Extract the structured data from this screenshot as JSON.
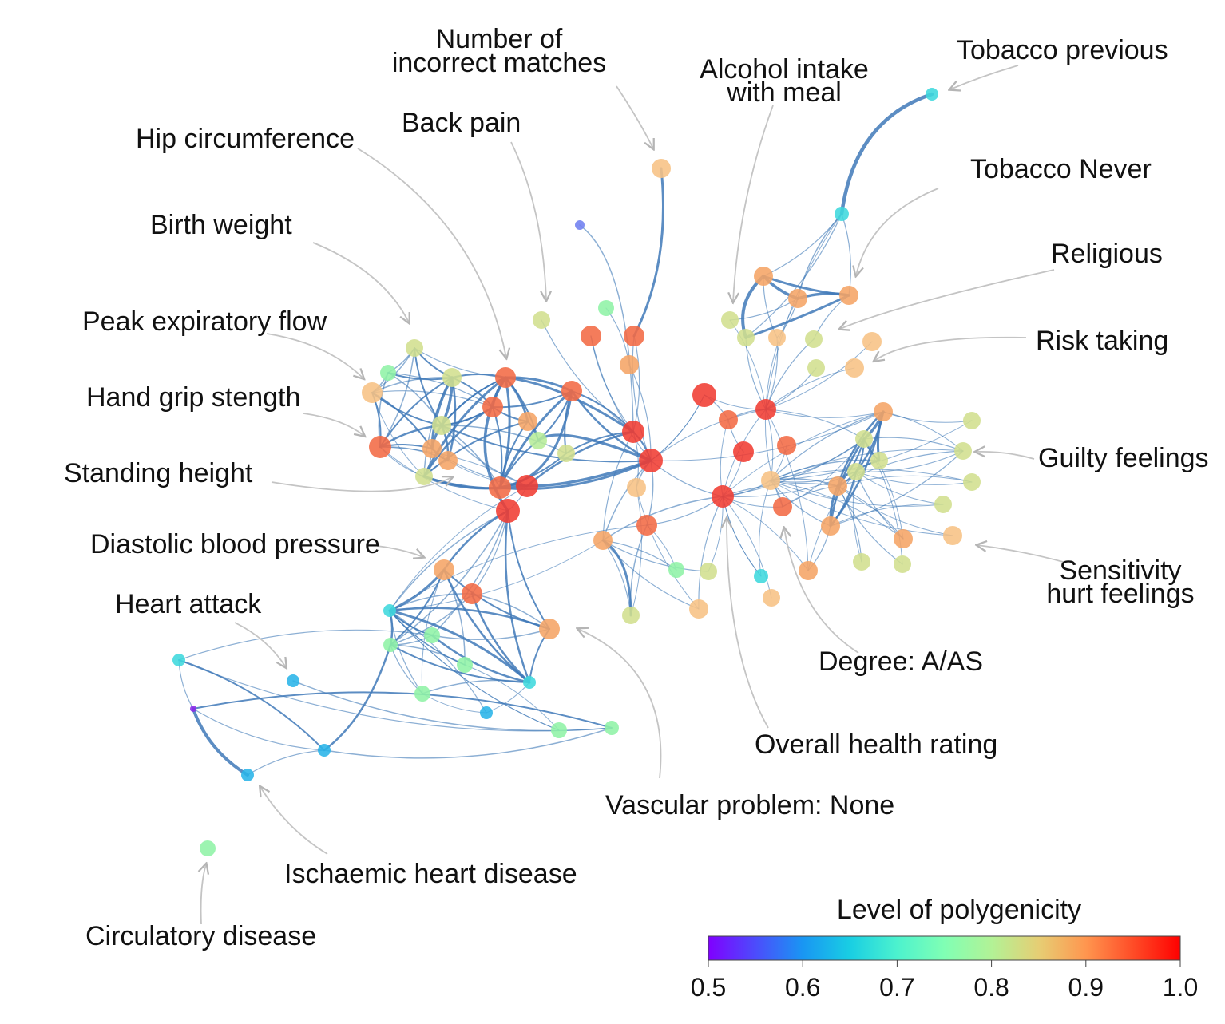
{
  "labels": {
    "tobacco_previous": "Tobacco previous",
    "number_incorrect_1": "Number of",
    "number_incorrect_2": "incorrect matches",
    "alcohol_1": "Alcohol intake",
    "alcohol_2": "with meal",
    "back_pain": "Back pain",
    "hip_circumference": "Hip circumference",
    "tobacco_never": "Tobacco Never",
    "birth_weight": "Birth weight",
    "religious": "Religious",
    "peak_expiratory_flow": "Peak expiratory flow",
    "risk_taking": "Risk taking",
    "hand_grip": "Hand grip stength",
    "guilty_feelings": "Guilty feelings",
    "standing_height": "Standing height",
    "sensitivity_1": "Sensitivity",
    "sensitivity_2": "hurt feelings",
    "diastolic": "Diastolic blood pressure",
    "heart_attack": "Heart attack",
    "degree": "Degree: A/AS",
    "overall_health": "Overall health rating",
    "vascular": "Vascular problem: None",
    "ischaemic": "Ischaemic heart disease",
    "circulatory": "Circulatory disease"
  },
  "colorbar": {
    "title": "Level of polygenicity",
    "ticks": [
      "0.5",
      "0.6",
      "0.7",
      "0.8",
      "0.9",
      "1.0"
    ],
    "min": 0.5,
    "max": 1.0,
    "colormap": "rainbow"
  },
  "node_colors": {
    "red": "#f03c32",
    "red_orange": "#f26a44",
    "orange": "#f5a465",
    "peach": "#f7c184",
    "yellow_green": "#d2df8e",
    "light_green": "#b6ec98",
    "green": "#8ff3a6",
    "cyan": "#3fd8dd",
    "sky": "#29b4e8",
    "blue": "#6f7ff0",
    "violet": "#8a2be8"
  },
  "edge_color": "#3f79b8",
  "arrow_color": "#c4c4c4"
}
